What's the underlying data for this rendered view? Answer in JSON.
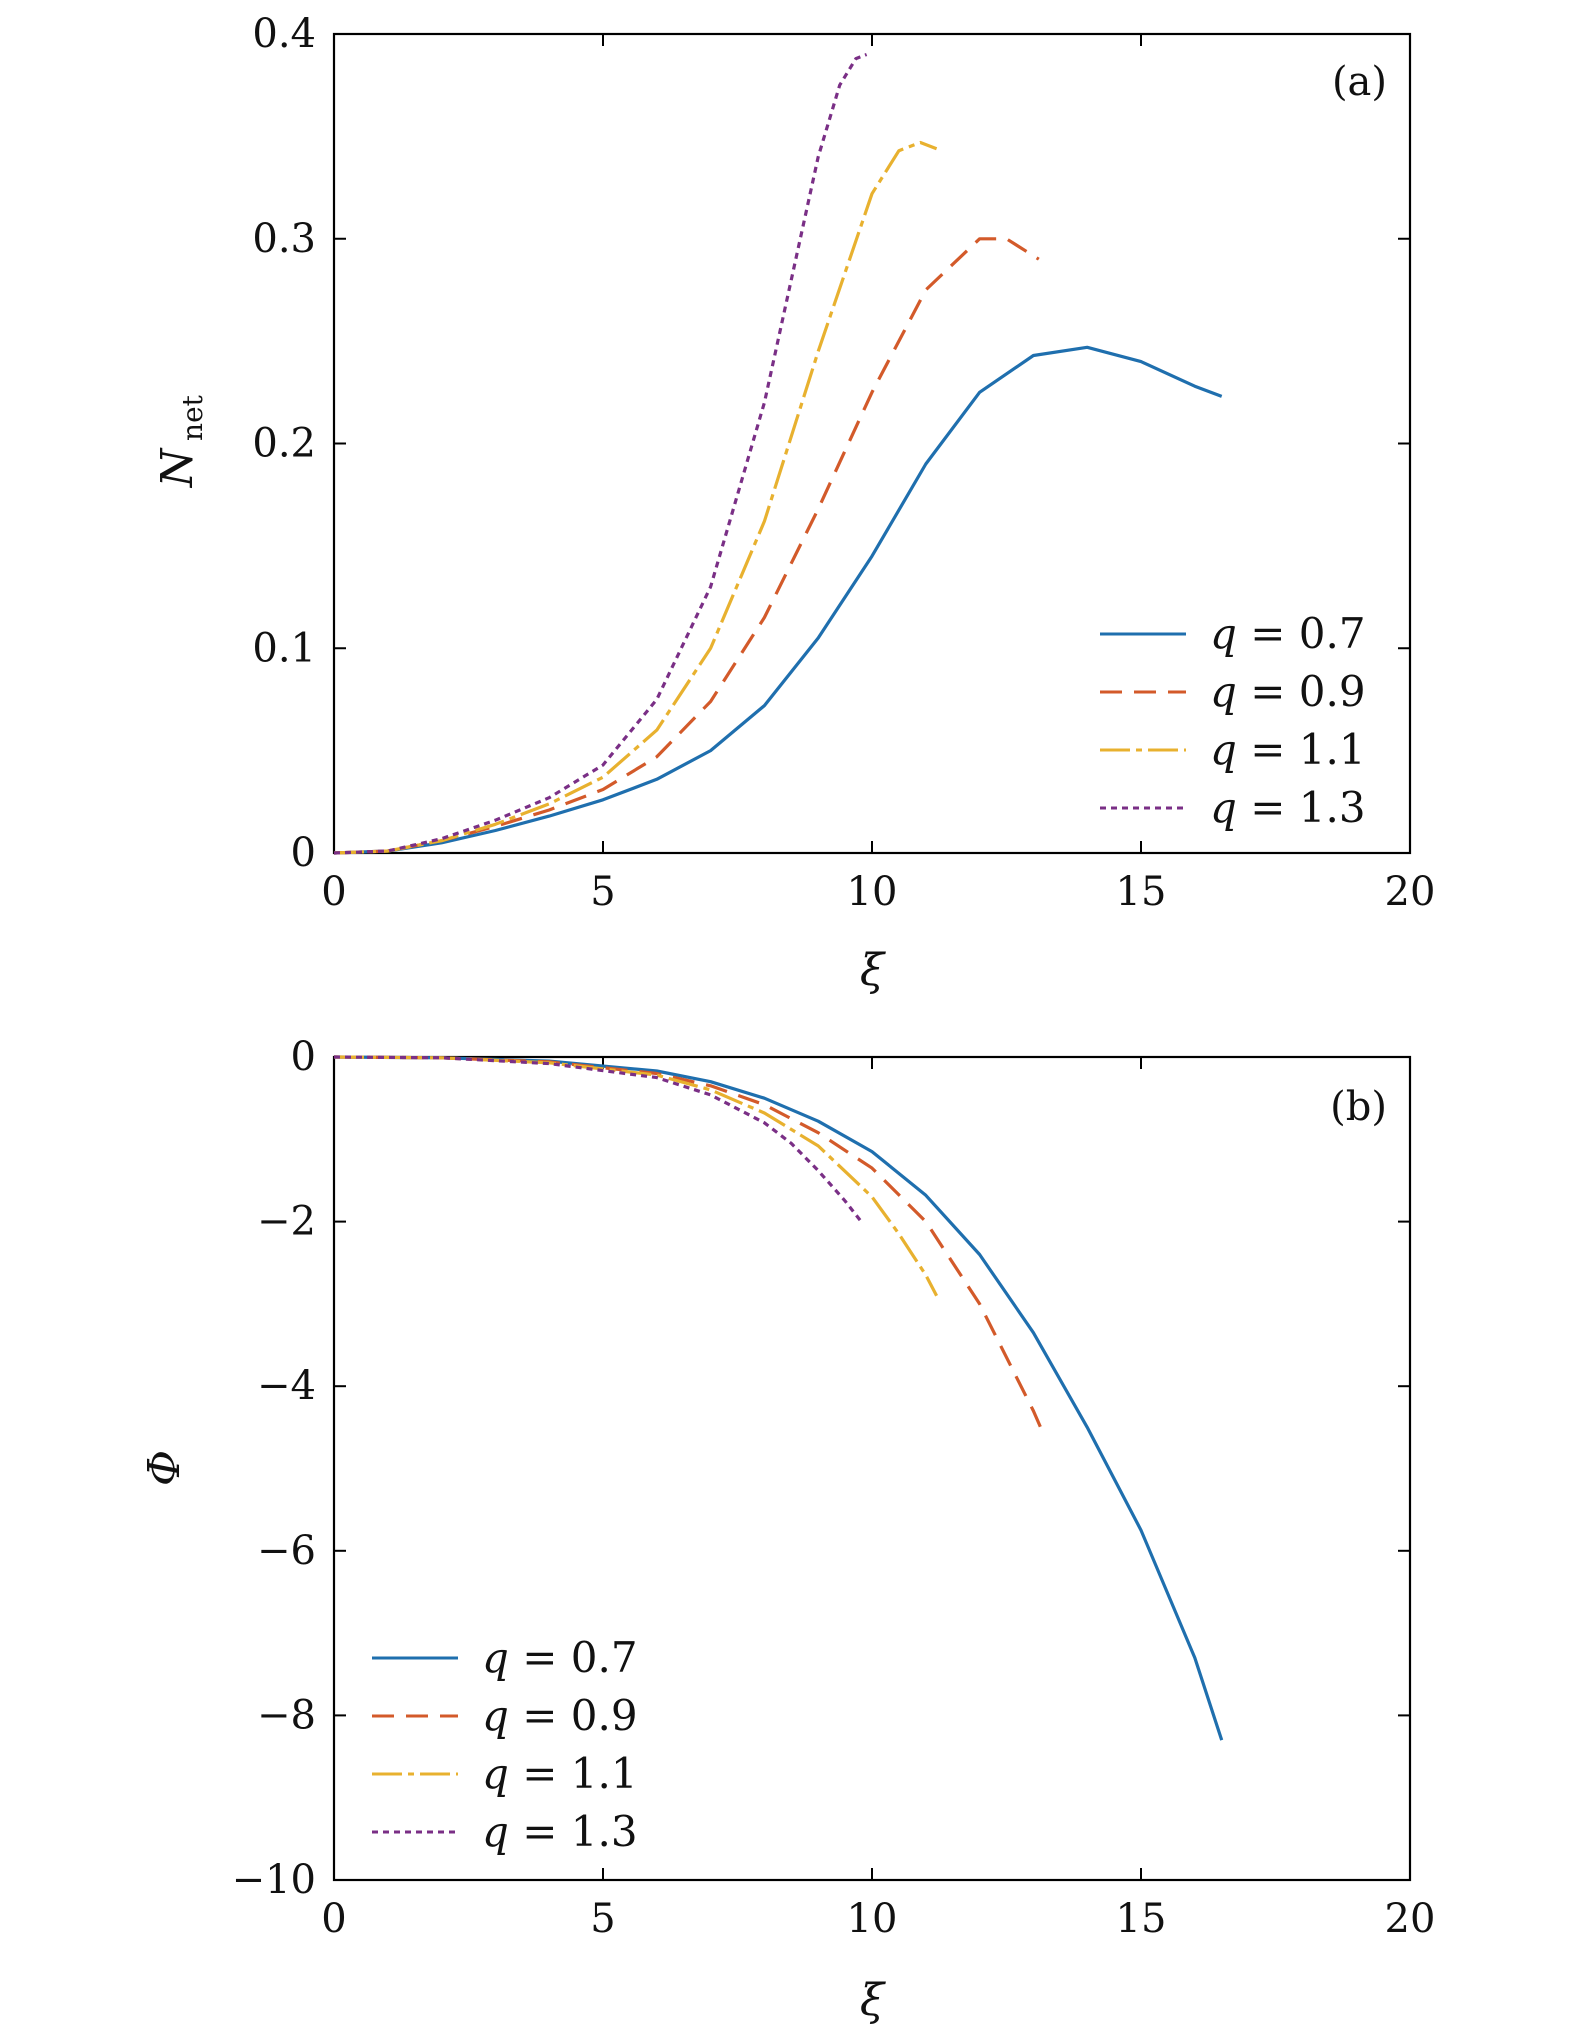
{
  "colors": {
    "q07": "#1f6fae",
    "q09": "#d35a2a",
    "q11": "#e8b12f",
    "q13": "#7a2f86"
  },
  "chart_data": [
    {
      "type": "line",
      "panel_label": "(a)",
      "xlabel": "ξ",
      "ylabel_main": "N",
      "ylabel_sub": "net",
      "xlim": [
        0,
        20
      ],
      "ylim": [
        0,
        0.4
      ],
      "x_ticks": [
        0,
        5,
        10,
        15,
        20
      ],
      "x_tick_labels": [
        "0",
        "5",
        "10",
        "15",
        "20"
      ],
      "y_ticks": [
        0,
        0.1,
        0.2,
        0.3,
        0.4
      ],
      "y_tick_labels": [
        "0",
        "0.1",
        "0.2",
        "0.3",
        "0.4"
      ],
      "legend_position": "lower-right",
      "series": [
        {
          "name": "q = 0.7",
          "color_key": "q07",
          "style": "solid",
          "x": [
            0,
            1,
            2,
            3,
            4,
            5,
            6,
            7,
            8,
            9,
            10,
            11,
            12,
            13,
            14,
            15,
            16,
            16.5
          ],
          "y": [
            0,
            0.001,
            0.005,
            0.011,
            0.018,
            0.026,
            0.036,
            0.05,
            0.072,
            0.105,
            0.145,
            0.19,
            0.225,
            0.243,
            0.247,
            0.24,
            0.228,
            0.223
          ]
        },
        {
          "name": "q = 0.9",
          "color_key": "q09",
          "style": "dashed",
          "x": [
            0,
            1,
            2,
            3,
            4,
            5,
            6,
            7,
            8,
            9,
            10,
            11,
            12,
            12.5,
            13.1
          ],
          "y": [
            0,
            0.001,
            0.006,
            0.013,
            0.021,
            0.031,
            0.047,
            0.074,
            0.115,
            0.168,
            0.225,
            0.275,
            0.3,
            0.3,
            0.29
          ]
        },
        {
          "name": "q = 1.1",
          "color_key": "q11",
          "style": "dashdot",
          "x": [
            0,
            1,
            2,
            3,
            4,
            5,
            6,
            7,
            8,
            9,
            10,
            10.5,
            10.9,
            11.2
          ],
          "y": [
            0,
            0.001,
            0.006,
            0.014,
            0.024,
            0.037,
            0.06,
            0.1,
            0.162,
            0.245,
            0.322,
            0.343,
            0.347,
            0.344
          ]
        },
        {
          "name": "q = 1.3",
          "color_key": "q13",
          "style": "dotted",
          "x": [
            0,
            1,
            2,
            3,
            4,
            5,
            6,
            7,
            8,
            8.5,
            9,
            9.4,
            9.7,
            9.9
          ],
          "y": [
            0,
            0.001,
            0.007,
            0.016,
            0.027,
            0.043,
            0.075,
            0.13,
            0.22,
            0.28,
            0.34,
            0.375,
            0.388,
            0.39
          ]
        }
      ]
    },
    {
      "type": "line",
      "panel_label": "(b)",
      "xlabel": "ξ",
      "ylabel_main": "Φ",
      "ylabel_sub": "",
      "xlim": [
        0,
        20
      ],
      "ylim": [
        -10,
        0
      ],
      "x_ticks": [
        0,
        5,
        10,
        15,
        20
      ],
      "x_tick_labels": [
        "0",
        "5",
        "10",
        "15",
        "20"
      ],
      "y_ticks": [
        0,
        -2,
        -4,
        -6,
        -8,
        -10
      ],
      "y_tick_labels": [
        "0",
        "−2",
        "−4",
        "−6",
        "−8",
        "−10"
      ],
      "legend_position": "lower-left",
      "series": [
        {
          "name": "q = 0.7",
          "color_key": "q07",
          "style": "solid",
          "x": [
            0,
            2,
            4,
            6,
            7,
            8,
            9,
            10,
            11,
            12,
            13,
            14,
            15,
            16,
            16.5
          ],
          "y": [
            0,
            -0.01,
            -0.05,
            -0.17,
            -0.3,
            -0.5,
            -0.78,
            -1.15,
            -1.68,
            -2.4,
            -3.35,
            -4.5,
            -5.75,
            -7.3,
            -8.3
          ]
        },
        {
          "name": "q = 0.9",
          "color_key": "q09",
          "style": "dashed",
          "x": [
            0,
            2,
            4,
            6,
            7,
            8,
            9,
            10,
            11,
            12,
            13,
            13.2
          ],
          "y": [
            0,
            -0.01,
            -0.06,
            -0.2,
            -0.35,
            -0.58,
            -0.92,
            -1.35,
            -2.0,
            -3.0,
            -4.3,
            -4.6
          ]
        },
        {
          "name": "q = 1.1",
          "color_key": "q11",
          "style": "dashdot",
          "x": [
            0,
            2,
            4,
            6,
            7,
            8,
            9,
            10,
            10.5,
            11,
            11.2
          ],
          "y": [
            0,
            -0.01,
            -0.07,
            -0.22,
            -0.4,
            -0.68,
            -1.08,
            -1.7,
            -2.15,
            -2.65,
            -2.9
          ]
        },
        {
          "name": "q = 1.3",
          "color_key": "q13",
          "style": "dotted",
          "x": [
            0,
            2,
            4,
            6,
            7,
            8,
            8.5,
            9,
            9.5,
            9.8
          ],
          "y": [
            0,
            -0.01,
            -0.08,
            -0.25,
            -0.46,
            -0.8,
            -1.05,
            -1.38,
            -1.75,
            -2.0
          ]
        }
      ]
    }
  ]
}
